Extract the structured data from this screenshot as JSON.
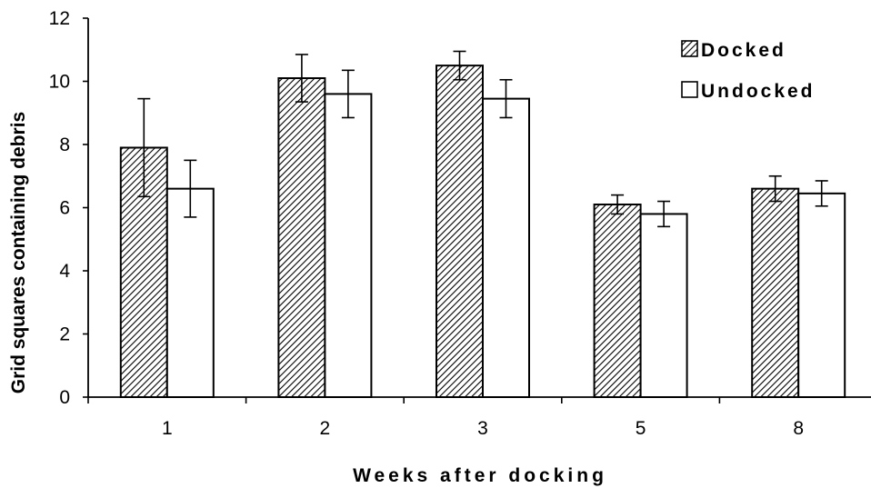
{
  "chart_data": {
    "type": "bar",
    "title": "",
    "xlabel": "Weeks after docking",
    "ylabel": "Grid squares containing debris",
    "categories": [
      "1",
      "2",
      "3",
      "5",
      "8"
    ],
    "ylim": [
      0,
      12
    ],
    "yticks": [
      0,
      2,
      4,
      6,
      8,
      10,
      12
    ],
    "grid": false,
    "legend_position": "top-right",
    "series": [
      {
        "name": "Docked",
        "fill": "hatched",
        "values": [
          7.9,
          10.1,
          10.5,
          6.1,
          6.6
        ],
        "error": [
          1.55,
          0.75,
          0.45,
          0.3,
          0.4
        ]
      },
      {
        "name": "Undocked",
        "fill": "white",
        "values": [
          6.6,
          9.6,
          9.45,
          5.8,
          6.45
        ],
        "error": [
          0.9,
          0.75,
          0.6,
          0.4,
          0.4
        ]
      }
    ],
    "colors": {
      "ink": "#000000",
      "background": "#ffffff"
    }
  }
}
